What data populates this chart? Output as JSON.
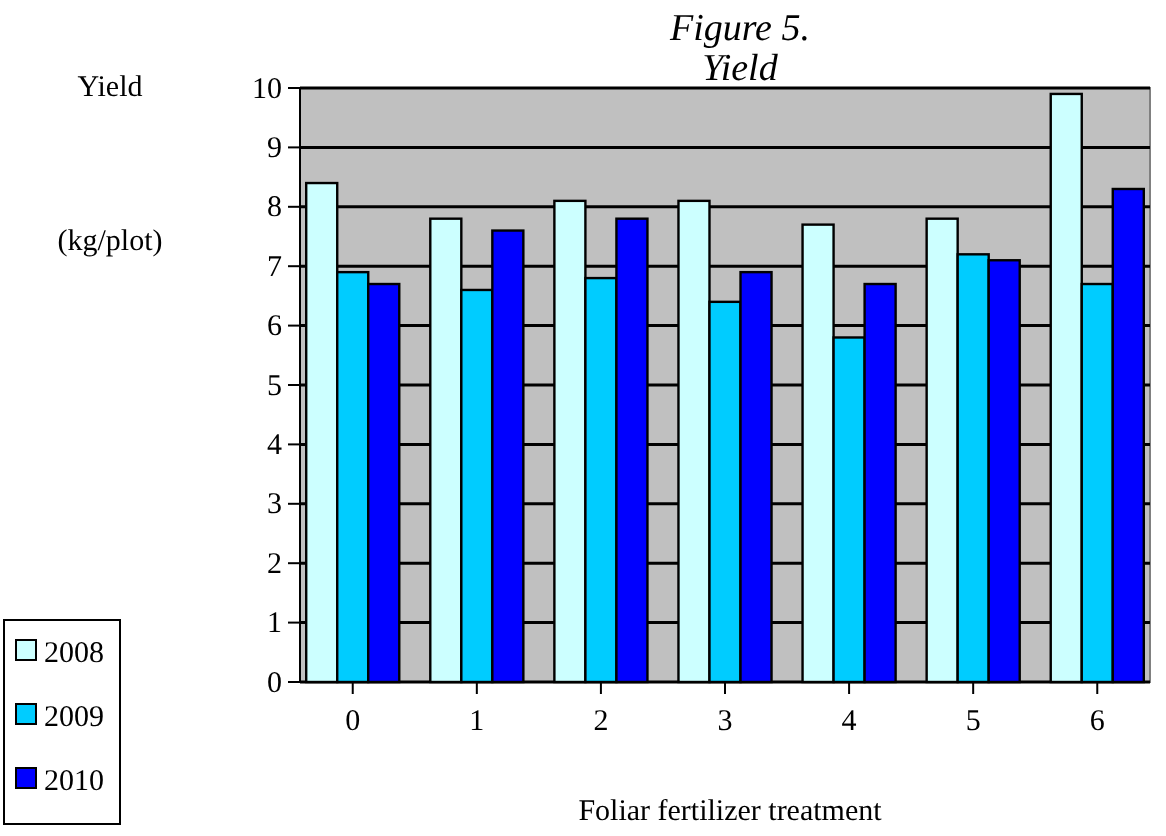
{
  "chart_data": {
    "type": "bar",
    "title": "Figure 5.\nYield",
    "xlabel": "Foliar fertilizer treatment",
    "ylabel": "Yield\n(kg/plot)",
    "categories": [
      "0",
      "1",
      "2",
      "3",
      "4",
      "5",
      "6"
    ],
    "series": [
      {
        "name": "2008",
        "color": "#ccffff",
        "values": [
          8.4,
          7.8,
          8.1,
          8.1,
          7.7,
          7.8,
          9.9
        ]
      },
      {
        "name": "2009",
        "color": "#00ccff",
        "values": [
          6.9,
          6.6,
          6.8,
          6.4,
          5.8,
          7.2,
          6.7
        ]
      },
      {
        "name": "2010",
        "color": "#0000ff",
        "values": [
          6.7,
          7.6,
          7.8,
          6.9,
          6.7,
          7.1,
          8.3
        ]
      }
    ],
    "ylim": [
      0,
      10
    ],
    "yticks": [
      0,
      1,
      2,
      3,
      4,
      5,
      6,
      7,
      8,
      9,
      10
    ],
    "grid": "y",
    "legend": "bottom left"
  }
}
